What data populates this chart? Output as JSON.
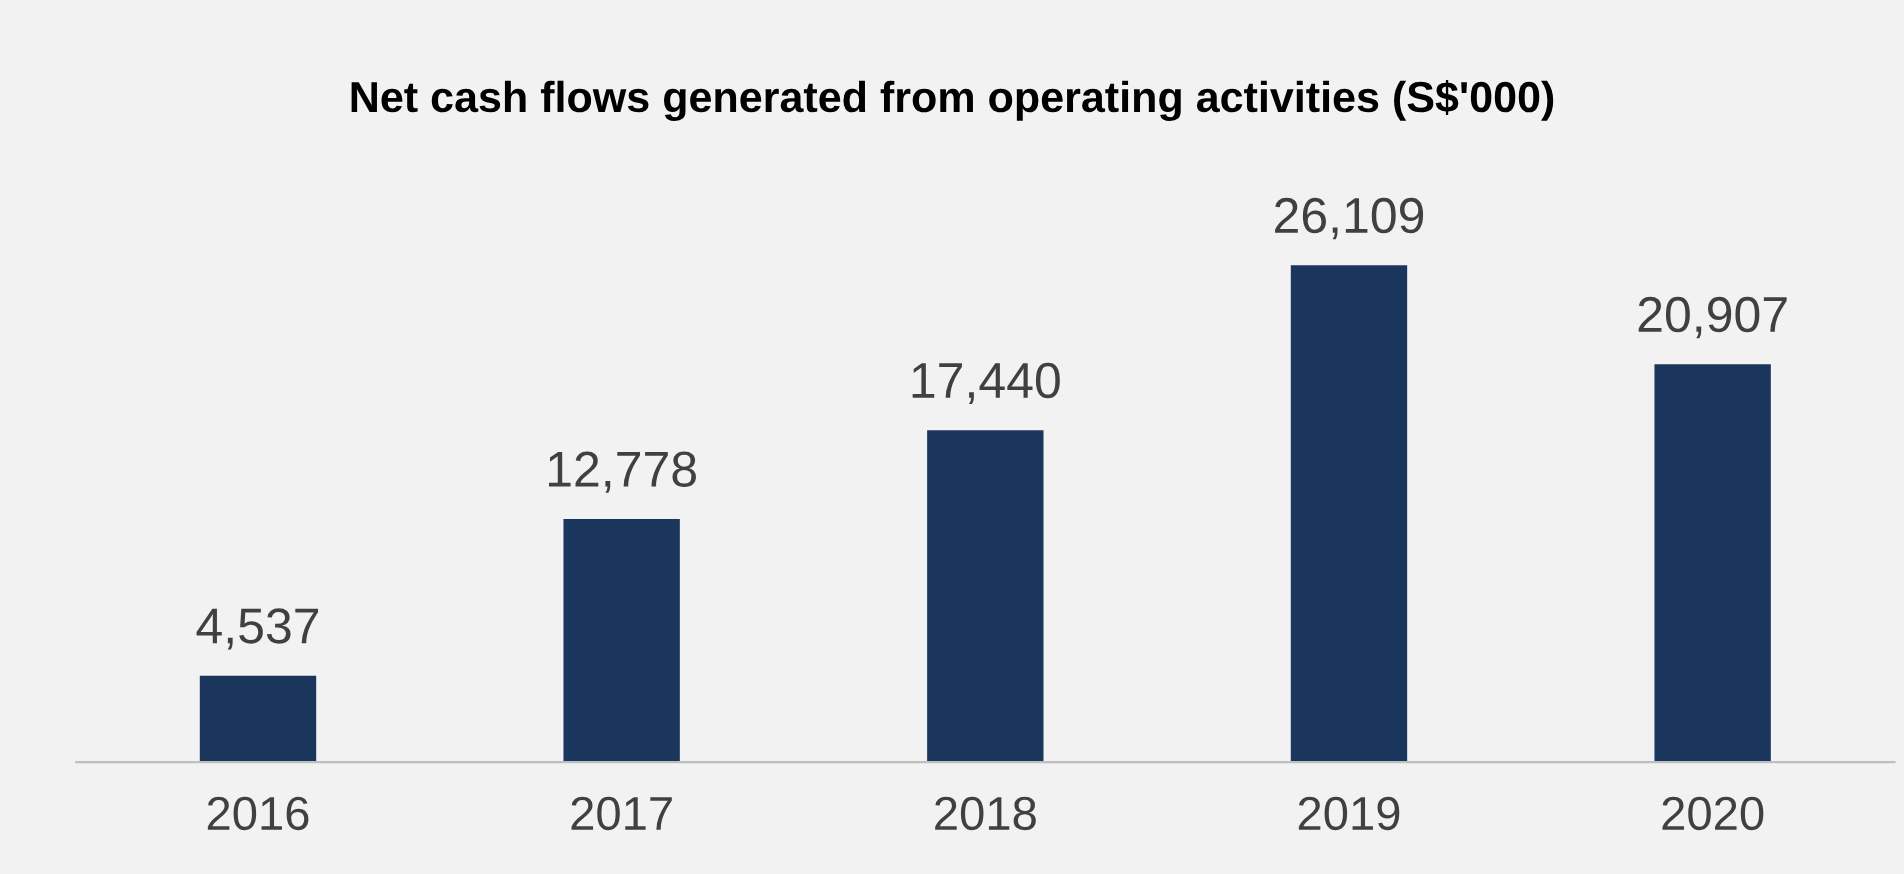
{
  "chart_data": {
    "type": "bar",
    "title": "Net cash flows generated from operating activities (S$'000)",
    "categories": [
      "2016",
      "2017",
      "2018",
      "2019",
      "2020"
    ],
    "values": [
      4537,
      12778,
      17440,
      26109,
      20907
    ],
    "color": "#1a365d",
    "value_labels": [
      "4,537",
      "12,778",
      "17,440",
      "26,109",
      "20,907"
    ],
    "grid": false,
    "legend": false
  }
}
